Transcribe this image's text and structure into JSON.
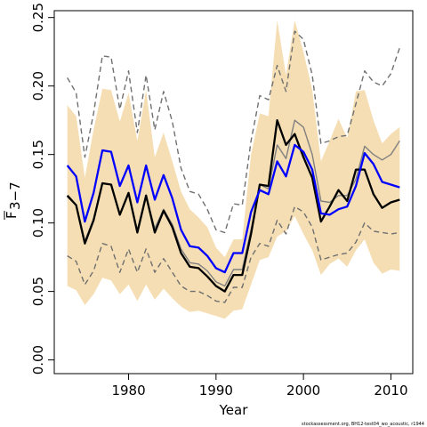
{
  "chart_data": {
    "type": "line",
    "xlabel": "Year",
    "ylabel_main": "F",
    "ylabel_sub": "3−7",
    "footer": "stockassessment.org, BH12-test04_wo_acoustic, r1944",
    "xlim": [
      1971.5,
      2012.5
    ],
    "ylim": [
      -0.01,
      0.255
    ],
    "x_ticks": [
      1980,
      1990,
      2000,
      2010
    ],
    "x_tick_labels": [
      "1980",
      "1990",
      "2000",
      "2010"
    ],
    "y_ticks": [
      0.0,
      0.05,
      0.1,
      0.15,
      0.2,
      0.25
    ],
    "y_tick_labels": [
      "0.00",
      "0.05",
      "0.10",
      "0.15",
      "0.20",
      "0.25"
    ],
    "years": [
      1973,
      1974,
      1975,
      1976,
      1977,
      1978,
      1979,
      1980,
      1981,
      1982,
      1983,
      1984,
      1985,
      1986,
      1987,
      1988,
      1989,
      1990,
      1991,
      1992,
      1993,
      1994,
      1995,
      1996,
      1997,
      1998,
      1999,
      2000,
      2001,
      2002,
      2003,
      2004,
      2005,
      2006,
      2007,
      2008,
      2009,
      2010,
      2011
    ],
    "band": {
      "color": "#f5deb3",
      "lower": [
        0.054,
        0.051,
        0.04,
        0.048,
        0.06,
        0.058,
        0.048,
        0.055,
        0.043,
        0.055,
        0.044,
        0.052,
        0.045,
        0.039,
        0.035,
        0.036,
        0.034,
        0.032,
        0.03,
        0.036,
        0.037,
        0.055,
        0.073,
        0.075,
        0.09,
        0.094,
        0.105,
        0.092,
        0.08,
        0.062,
        0.07,
        0.074,
        0.068,
        0.08,
        0.088,
        0.071,
        0.063,
        0.066,
        0.065
      ],
      "upper": [
        0.186,
        0.178,
        0.133,
        0.168,
        0.198,
        0.197,
        0.174,
        0.195,
        0.16,
        0.197,
        0.148,
        0.166,
        0.145,
        0.123,
        0.11,
        0.104,
        0.097,
        0.082,
        0.075,
        0.088,
        0.088,
        0.15,
        0.18,
        0.178,
        0.248,
        0.208,
        0.248,
        0.225,
        0.197,
        0.145,
        0.16,
        0.176,
        0.162,
        0.196,
        0.197,
        0.175,
        0.158,
        0.165,
        0.17
      ]
    },
    "series": [
      {
        "color": "#000000",
        "width": 2.3,
        "dash": "none",
        "values": [
          0.12,
          0.113,
          0.085,
          0.102,
          0.129,
          0.128,
          0.106,
          0.122,
          0.093,
          0.12,
          0.093,
          0.109,
          0.097,
          0.078,
          0.068,
          0.067,
          0.061,
          0.054,
          0.05,
          0.062,
          0.062,
          0.092,
          0.128,
          0.127,
          0.175,
          0.157,
          0.165,
          0.148,
          0.133,
          0.101,
          0.112,
          0.124,
          0.116,
          0.139,
          0.139,
          0.121,
          0.111,
          0.115,
          0.117
        ]
      },
      {
        "color": "#0000ff",
        "width": 2.3,
        "dash": "none",
        "values": [
          0.142,
          0.134,
          0.101,
          0.122,
          0.153,
          0.152,
          0.127,
          0.142,
          0.115,
          0.142,
          0.117,
          0.135,
          0.118,
          0.095,
          0.083,
          0.082,
          0.076,
          0.067,
          0.064,
          0.078,
          0.078,
          0.108,
          0.124,
          0.121,
          0.145,
          0.134,
          0.157,
          0.152,
          0.139,
          0.107,
          0.106,
          0.11,
          0.112,
          0.127,
          0.151,
          0.143,
          0.13,
          0.128,
          0.126
        ]
      },
      {
        "color": "#808080",
        "width": 1.4,
        "dash": "none",
        "values": [
          0.119,
          0.113,
          0.087,
          0.103,
          0.129,
          0.128,
          0.106,
          0.122,
          0.095,
          0.12,
          0.096,
          0.11,
          0.099,
          0.081,
          0.071,
          0.07,
          0.065,
          0.057,
          0.054,
          0.066,
          0.066,
          0.095,
          0.128,
          0.125,
          0.157,
          0.147,
          0.175,
          0.17,
          0.15,
          0.116,
          0.115,
          0.12,
          0.12,
          0.132,
          0.156,
          0.15,
          0.146,
          0.15,
          0.16
        ]
      },
      {
        "color": "#707070",
        "width": 1.4,
        "dash": "6,4",
        "values": [
          0.206,
          0.195,
          0.148,
          0.18,
          0.222,
          0.221,
          0.183,
          0.211,
          0.166,
          0.208,
          0.168,
          0.196,
          0.174,
          0.14,
          0.123,
          0.121,
          0.11,
          0.095,
          0.093,
          0.114,
          0.113,
          0.16,
          0.193,
          0.19,
          0.215,
          0.196,
          0.24,
          0.234,
          0.208,
          0.158,
          0.16,
          0.163,
          0.164,
          0.187,
          0.211,
          0.203,
          0.2,
          0.209,
          0.228
        ]
      },
      {
        "color": "#707070",
        "width": 1.4,
        "dash": "6,4",
        "values": [
          0.076,
          0.072,
          0.055,
          0.065,
          0.085,
          0.083,
          0.064,
          0.081,
          0.064,
          0.081,
          0.064,
          0.074,
          0.064,
          0.054,
          0.05,
          0.05,
          0.047,
          0.043,
          0.042,
          0.053,
          0.053,
          0.075,
          0.085,
          0.083,
          0.102,
          0.092,
          0.112,
          0.108,
          0.097,
          0.073,
          0.075,
          0.077,
          0.078,
          0.086,
          0.1,
          0.094,
          0.093,
          0.092,
          0.093
        ]
      }
    ]
  }
}
